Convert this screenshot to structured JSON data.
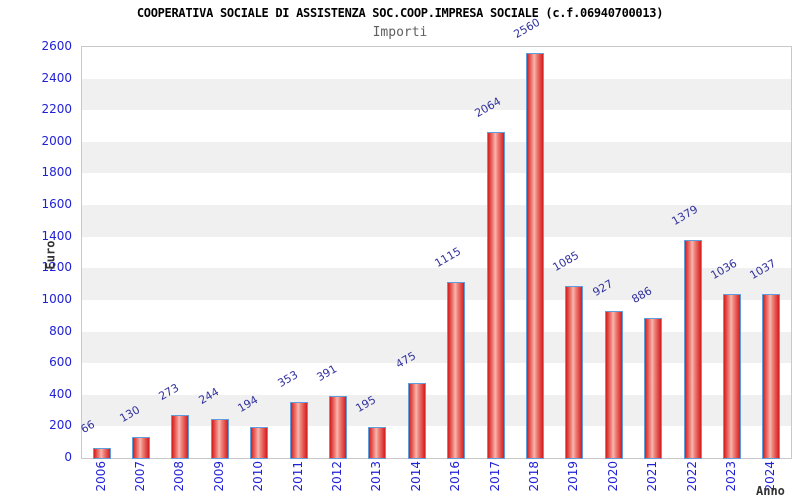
{
  "header": {
    "title": "COOPERATIVA SOCIALE DI ASSISTENZA SOC.COOP.IMPRESA SOCIALE (c.f.06940700013)",
    "subtitle": "Importi"
  },
  "chart_data": {
    "type": "bar",
    "title": "COOPERATIVA SOCIALE DI ASSISTENZA SOC.COOP.IMPRESA SOCIALE (c.f.06940700013)",
    "subtitle": "Importi",
    "xlabel": "Anno",
    "ylabel": "Euro",
    "categories": [
      "2006",
      "2007",
      "2008",
      "2009",
      "2010",
      "2011",
      "2012",
      "2013",
      "2014",
      "2016",
      "2017",
      "2018",
      "2019",
      "2020",
      "2021",
      "2022",
      "2023",
      "2024"
    ],
    "values": [
      66,
      130,
      273,
      244,
      194,
      353,
      391,
      195,
      475,
      1115,
      2064,
      2560,
      1085,
      927,
      886,
      1379,
      1036,
      1037
    ],
    "ylim": [
      0,
      2600
    ],
    "ytick_step": 200,
    "grid": "alternating-horizontal-bands",
    "legend": "none",
    "colors": {
      "bar_fill_dark": "#d41d1d",
      "bar_fill_light": "#f7b6ae",
      "bar_border": "#5f9ddb",
      "tick_label": "#2121d6",
      "value_label": "#31319e",
      "band_gray": "#f0f0f0",
      "band_white": "#ffffff",
      "frame": "#c9c9c9",
      "title": "#000000",
      "subtitle": "#606060",
      "axis_label": "#333333"
    }
  }
}
